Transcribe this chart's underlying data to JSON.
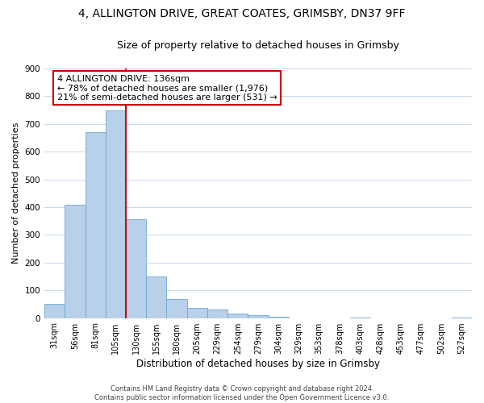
{
  "title_line1": "4, ALLINGTON DRIVE, GREAT COATES, GRIMSBY, DN37 9FF",
  "title_line2": "Size of property relative to detached houses in Grimsby",
  "xlabel": "Distribution of detached houses by size in Grimsby",
  "ylabel": "Number of detached properties",
  "bar_labels": [
    "31sqm",
    "56sqm",
    "81sqm",
    "105sqm",
    "130sqm",
    "155sqm",
    "180sqm",
    "205sqm",
    "229sqm",
    "254sqm",
    "279sqm",
    "304sqm",
    "329sqm",
    "353sqm",
    "378sqm",
    "403sqm",
    "428sqm",
    "453sqm",
    "477sqm",
    "502sqm",
    "527sqm"
  ],
  "bar_heights": [
    50,
    410,
    670,
    750,
    355,
    150,
    70,
    37,
    30,
    17,
    10,
    4,
    0,
    0,
    0,
    3,
    0,
    0,
    0,
    0,
    3
  ],
  "bar_color": "#b8d0ea",
  "bar_edge_color": "#6fa8d0",
  "vline_color": "#cc0000",
  "vline_x": 4,
  "annotation_text_line1": "4 ALLINGTON DRIVE: 136sqm",
  "annotation_text_line2": "← 78% of detached houses are smaller (1,976)",
  "annotation_text_line3": "21% of semi-detached houses are larger (531) →",
  "annotation_box_edgecolor": "#cc0000",
  "annotation_box_facecolor": "#ffffff",
  "ylim": [
    0,
    900
  ],
  "yticks": [
    0,
    100,
    200,
    300,
    400,
    500,
    600,
    700,
    800,
    900
  ],
  "footer_line1": "Contains HM Land Registry data © Crown copyright and database right 2024.",
  "footer_line2": "Contains public sector information licensed under the Open Government Licence v3.0.",
  "background_color": "#ffffff",
  "grid_color": "#c8d8ec",
  "title_fontsize": 10,
  "subtitle_fontsize": 9,
  "annotation_fontsize": 8,
  "tick_label_fontsize": 7,
  "ylabel_fontsize": 8,
  "xlabel_fontsize": 8.5,
  "footer_fontsize": 6
}
